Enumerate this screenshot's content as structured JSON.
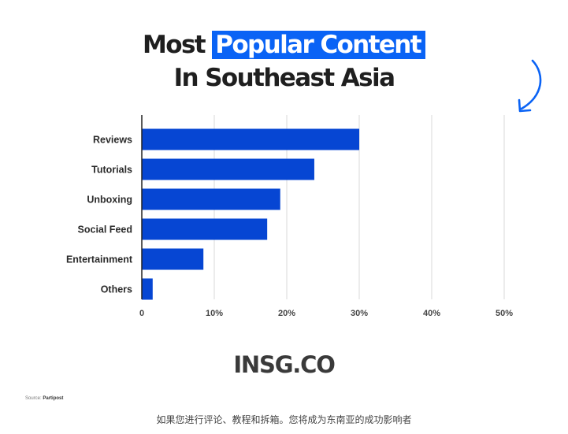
{
  "title": {
    "prefix": "Most",
    "highlight": "Popular Content",
    "line2": "In Southeast Asia"
  },
  "logo": "INSG.CO",
  "source": {
    "label": "Source:",
    "name": "Partipost"
  },
  "caption": "如果您进行评论、教程和拆箱。您将成为东南亚的成功影响者",
  "colors": {
    "bar": "#0646d3",
    "highlight": "#0a63f5",
    "grid": "#d9d9d9",
    "axis": "#222222"
  },
  "icons": [
    "curved-arrow-icon"
  ],
  "chart_data": {
    "type": "bar",
    "orientation": "horizontal",
    "categories": [
      "Reviews",
      "Tutorials",
      "Unboxing",
      "Social Feed",
      "Entertainment",
      "Others"
    ],
    "values": [
      30,
      23.8,
      19.1,
      17.3,
      8.5,
      1.5
    ],
    "xlim": [
      0,
      50
    ],
    "x_ticks": [
      0,
      10,
      20,
      30,
      40,
      50
    ],
    "x_tick_labels": [
      "0",
      "10%",
      "20%",
      "30%",
      "40%",
      "50%"
    ],
    "grid": true,
    "title": "Most Popular Content In Southeast Asia"
  }
}
